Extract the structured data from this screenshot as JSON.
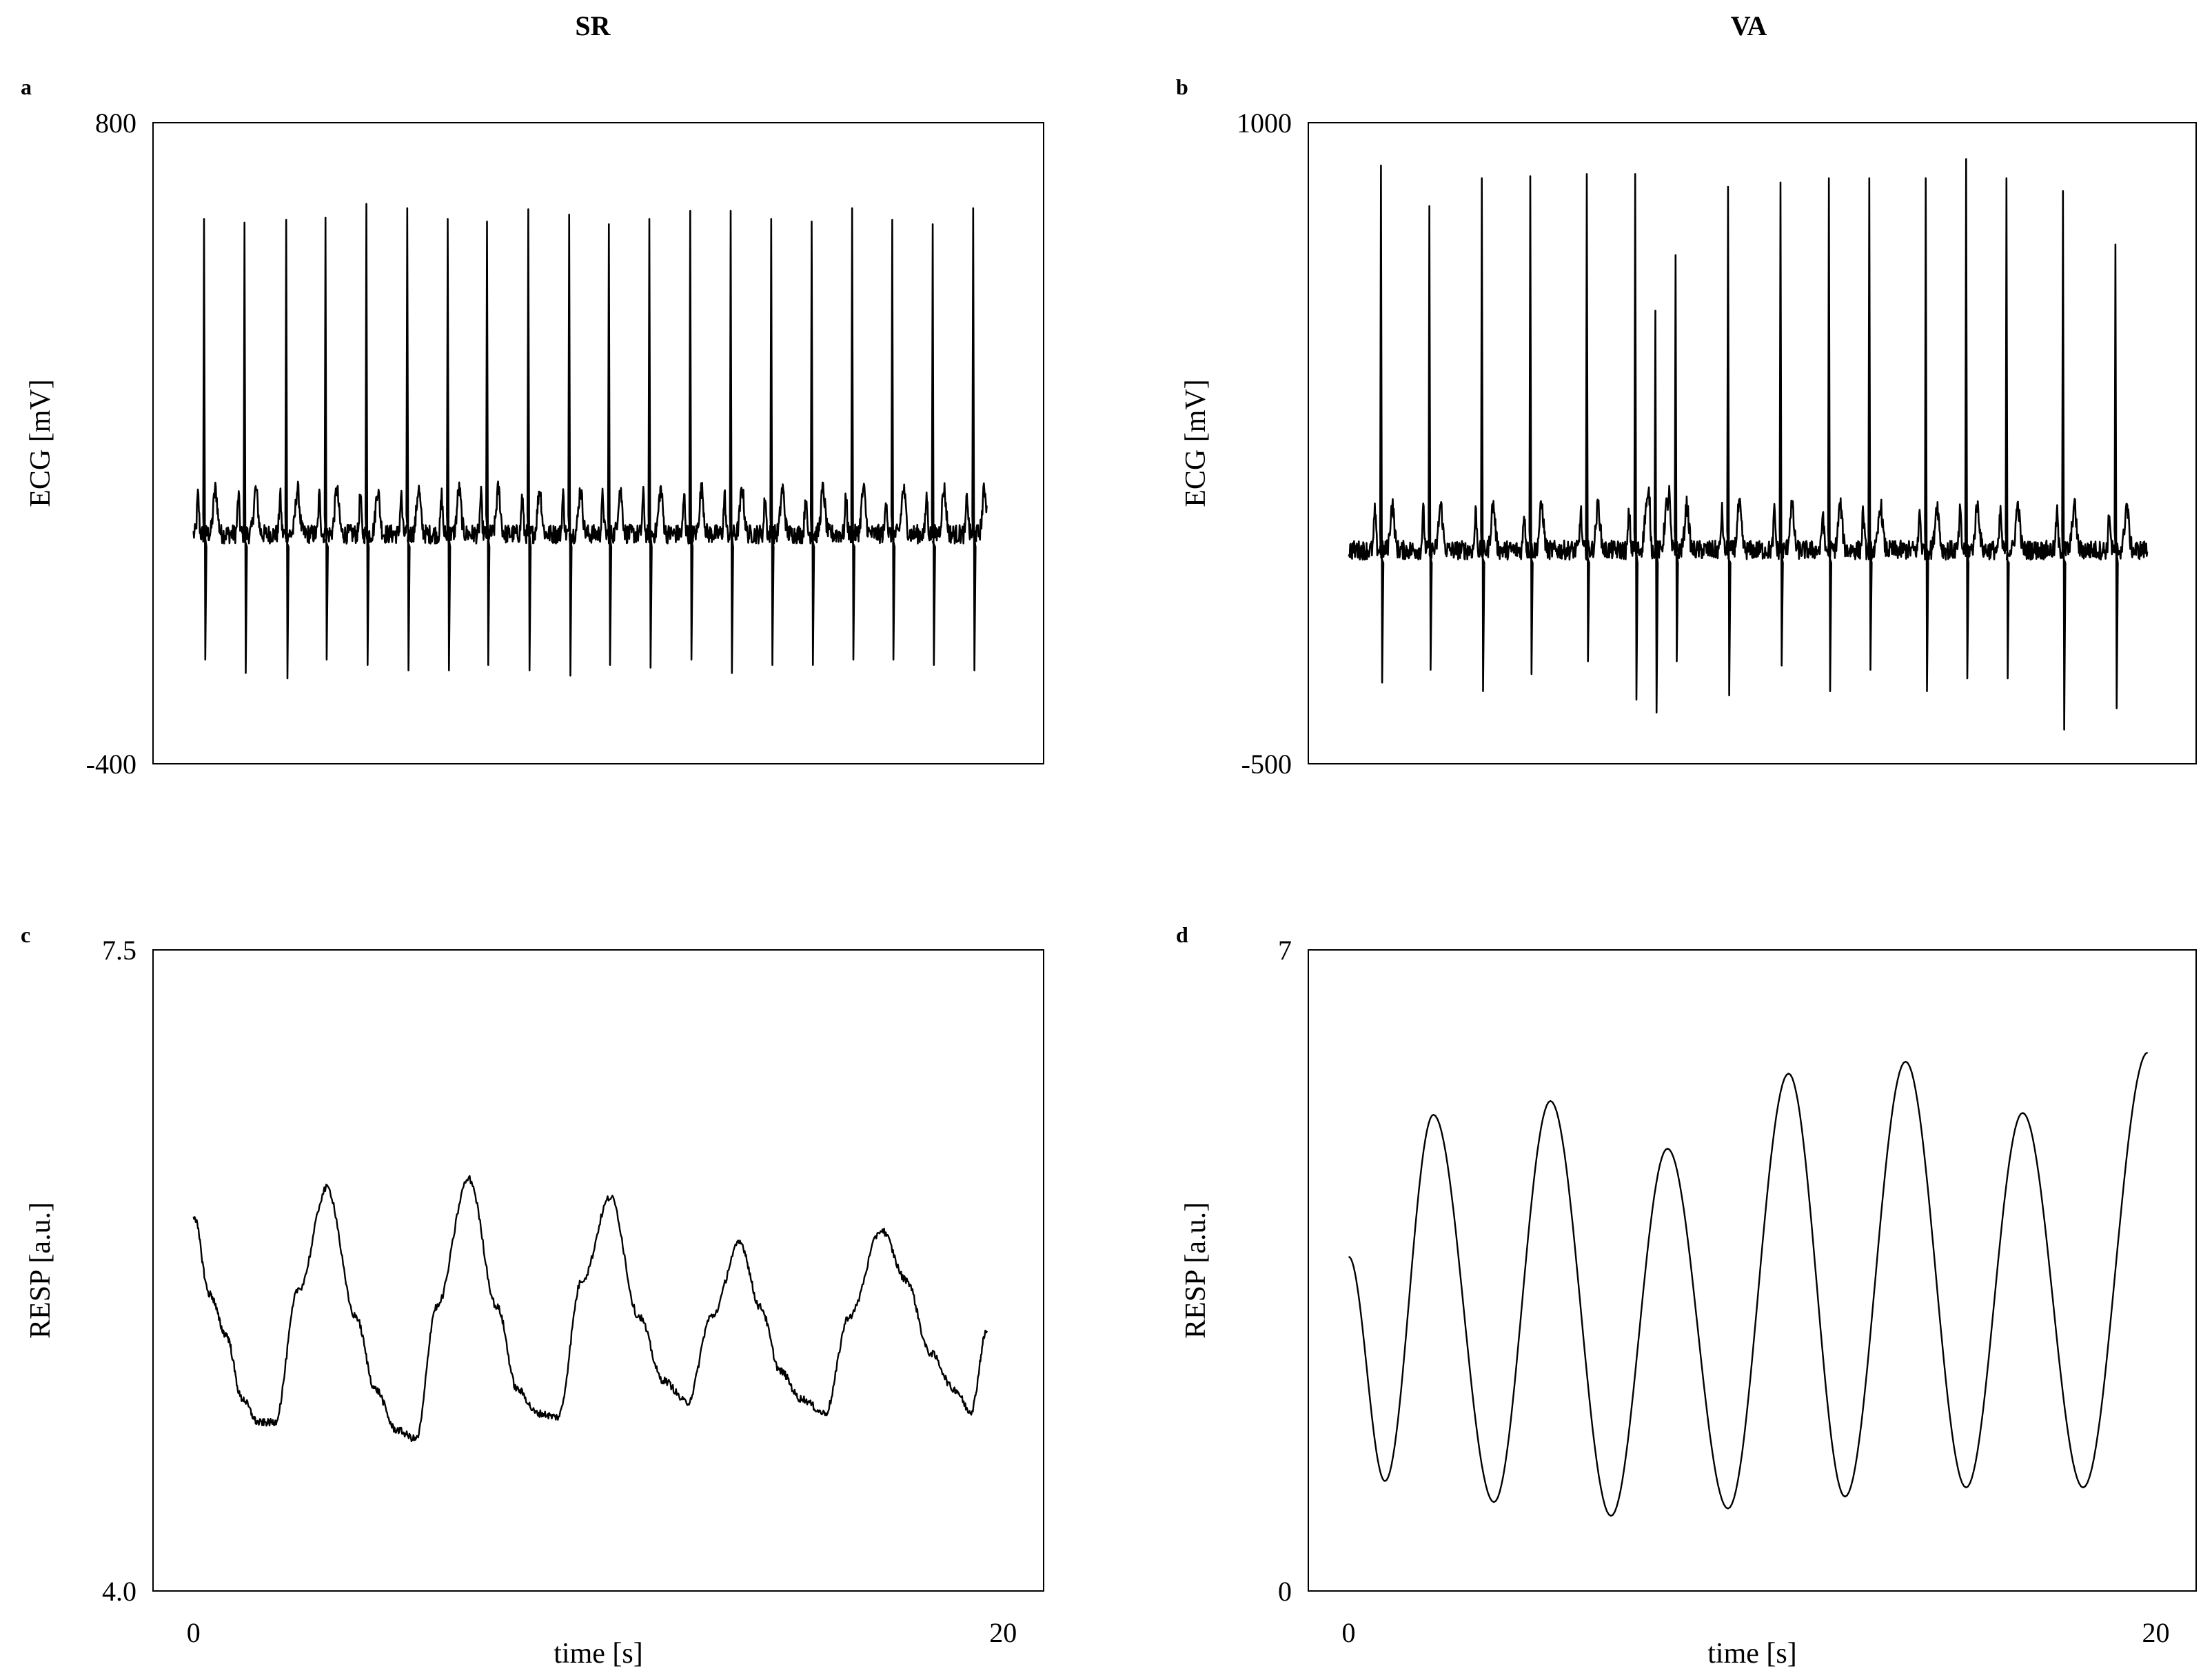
{
  "columns": [
    "SR",
    "VA"
  ],
  "chart_data": [
    {
      "type": "line",
      "panel": "a",
      "column": "SR",
      "ylabel": "ECG [mV]",
      "xlabel": "",
      "ylim": [
        -400,
        800
      ],
      "xlim": [
        -1,
        21
      ],
      "yticks": [
        "800",
        "-400"
      ],
      "xticks": [],
      "grid": false,
      "series": [
        {
          "kind": "ecg",
          "baseline": 30,
          "r_peaks": [
            {
              "t": 0.26,
              "r": 620,
              "s": -205
            },
            {
              "t": 1.26,
              "r": 613,
              "s": -230
            },
            {
              "t": 2.29,
              "r": 618,
              "s": -240
            },
            {
              "t": 3.26,
              "r": 622,
              "s": -205
            },
            {
              "t": 4.27,
              "r": 648,
              "s": -215
            },
            {
              "t": 5.28,
              "r": 640,
              "s": -225
            },
            {
              "t": 6.28,
              "r": 620,
              "s": -225
            },
            {
              "t": 7.25,
              "r": 615,
              "s": -215
            },
            {
              "t": 8.27,
              "r": 638,
              "s": -225
            },
            {
              "t": 9.28,
              "r": 628,
              "s": -235
            },
            {
              "t": 10.26,
              "r": 610,
              "s": -215
            },
            {
              "t": 11.26,
              "r": 620,
              "s": -220
            },
            {
              "t": 12.27,
              "r": 635,
              "s": -205
            },
            {
              "t": 13.27,
              "r": 635,
              "s": -230
            },
            {
              "t": 14.27,
              "r": 620,
              "s": -215
            },
            {
              "t": 15.27,
              "r": 615,
              "s": -215
            },
            {
              "t": 16.27,
              "r": 640,
              "s": -205
            },
            {
              "t": 17.26,
              "r": 618,
              "s": -205
            },
            {
              "t": 18.26,
              "r": 610,
              "s": -215
            },
            {
              "t": 19.26,
              "r": 640,
              "s": -225
            }
          ],
          "end": 19.6
        }
      ]
    },
    {
      "type": "line",
      "panel": "b",
      "column": "VA",
      "ylabel": "ECG [mV]",
      "xlabel": "",
      "ylim": [
        -500,
        1000
      ],
      "xlim": [
        -1,
        21
      ],
      "yticks": [
        "1000",
        "-500"
      ],
      "xticks": [],
      "grid": false,
      "series": [
        {
          "kind": "ecg",
          "baseline": 0,
          "r_peaks": [
            {
              "t": 0.8,
              "r": 900,
              "s": -310
            },
            {
              "t": 2.0,
              "r": 805,
              "s": -280
            },
            {
              "t": 3.3,
              "r": 870,
              "s": -330
            },
            {
              "t": 4.5,
              "r": 875,
              "s": -290
            },
            {
              "t": 5.9,
              "r": 880,
              "s": -260
            },
            {
              "t": 7.1,
              "r": 880,
              "s": -350
            },
            {
              "t": 7.6,
              "r": 560,
              "s": -380
            },
            {
              "t": 8.1,
              "r": 690,
              "s": -260
            },
            {
              "t": 9.4,
              "r": 850,
              "s": -340
            },
            {
              "t": 10.7,
              "r": 860,
              "s": -270
            },
            {
              "t": 11.9,
              "r": 870,
              "s": -330
            },
            {
              "t": 12.9,
              "r": 870,
              "s": -280
            },
            {
              "t": 14.3,
              "r": 870,
              "s": -330
            },
            {
              "t": 15.3,
              "r": 915,
              "s": -300
            },
            {
              "t": 16.3,
              "r": 870,
              "s": -300
            },
            {
              "t": 17.7,
              "r": 840,
              "s": -420
            },
            {
              "t": 19.0,
              "r": 715,
              "s": -370
            }
          ],
          "end": 19.8
        }
      ]
    },
    {
      "type": "line",
      "panel": "c",
      "column": "SR",
      "ylabel": "RESP [a.u.]",
      "xlabel": "time [s]",
      "ylim": [
        4.0,
        7.5
      ],
      "xlim": [
        -1,
        21
      ],
      "yticks": [
        "7.5",
        "4.0"
      ],
      "xticks": [
        {
          "v": 0,
          "label": "0"
        },
        {
          "v": 20,
          "label": "20"
        }
      ],
      "grid": false,
      "series": [
        {
          "kind": "resp",
          "noisy": true,
          "points": [
            [
              0,
              6.05
            ],
            [
              0.4,
              5.62
            ],
            [
              0.8,
              5.4
            ],
            [
              1.2,
              5.05
            ],
            [
              1.6,
              4.92
            ],
            [
              2.0,
              4.92
            ],
            [
              2.6,
              5.65
            ],
            [
              3.3,
              6.2
            ],
            [
              4.0,
              5.5
            ],
            [
              4.5,
              5.1
            ],
            [
              5.0,
              4.88
            ],
            [
              5.5,
              4.83
            ],
            [
              6.0,
              5.55
            ],
            [
              6.8,
              6.25
            ],
            [
              7.5,
              5.55
            ],
            [
              8.0,
              5.1
            ],
            [
              8.5,
              4.97
            ],
            [
              9.0,
              4.95
            ],
            [
              9.6,
              5.7
            ],
            [
              10.3,
              6.15
            ],
            [
              11.0,
              5.5
            ],
            [
              11.6,
              5.15
            ],
            [
              12.2,
              5.03
            ],
            [
              12.8,
              5.5
            ],
            [
              13.5,
              5.9
            ],
            [
              14.0,
              5.55
            ],
            [
              14.5,
              5.2
            ],
            [
              15.0,
              5.05
            ],
            [
              15.6,
              4.97
            ],
            [
              16.2,
              5.5
            ],
            [
              17.0,
              5.97
            ],
            [
              17.6,
              5.7
            ],
            [
              18.2,
              5.3
            ],
            [
              18.8,
              5.1
            ],
            [
              19.2,
              4.98
            ],
            [
              19.6,
              5.42
            ]
          ]
        }
      ]
    },
    {
      "type": "line",
      "panel": "d",
      "column": "VA",
      "ylabel": "RESP [a.u.]",
      "xlabel": "time [s]",
      "ylim": [
        0,
        7
      ],
      "xlim": [
        -1,
        21
      ],
      "yticks": [
        "7",
        "0"
      ],
      "xticks": [
        {
          "v": 0,
          "label": "0"
        },
        {
          "v": 20,
          "label": "20"
        }
      ],
      "grid": false,
      "series": [
        {
          "kind": "resp",
          "noisy": false,
          "points": [
            [
              0,
              3.65
            ],
            [
              0.9,
              1.2
            ],
            [
              2.1,
              5.2
            ],
            [
              3.6,
              0.97
            ],
            [
              5.0,
              5.35
            ],
            [
              6.5,
              0.82
            ],
            [
              7.9,
              4.83
            ],
            [
              9.4,
              0.9
            ],
            [
              10.9,
              5.65
            ],
            [
              12.3,
              1.03
            ],
            [
              13.8,
              5.78
            ],
            [
              15.3,
              1.13
            ],
            [
              16.7,
              5.22
            ],
            [
              18.2,
              1.13
            ],
            [
              19.8,
              5.88
            ]
          ]
        }
      ]
    }
  ]
}
